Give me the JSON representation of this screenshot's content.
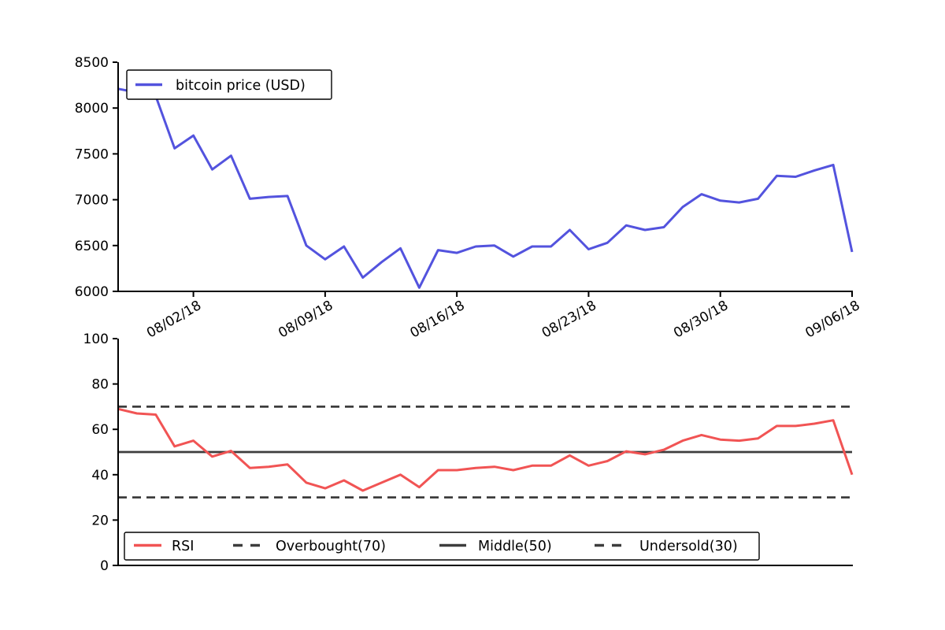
{
  "figure": {
    "background": "#ffffff",
    "text_color": "#000000",
    "axis_color": "#000000"
  },
  "chart_data": [
    {
      "id": "price",
      "type": "line",
      "x": [
        "07/29/18",
        "07/30/18",
        "07/31/18",
        "08/01/18",
        "08/02/18",
        "08/03/18",
        "08/04/18",
        "08/05/18",
        "08/06/18",
        "08/07/18",
        "08/08/18",
        "08/09/18",
        "08/10/18",
        "08/11/18",
        "08/12/18",
        "08/13/18",
        "08/14/18",
        "08/15/18",
        "08/16/18",
        "08/17/18",
        "08/18/18",
        "08/19/18",
        "08/20/18",
        "08/21/18",
        "08/22/18",
        "08/23/18",
        "08/24/18",
        "08/25/18",
        "08/26/18",
        "08/27/18",
        "08/28/18",
        "08/29/18",
        "08/30/18",
        "08/31/18",
        "09/01/18",
        "09/02/18",
        "09/03/18",
        "09/04/18",
        "09/05/18",
        "09/06/18"
      ],
      "series": [
        {
          "name": "bitcoin price (USD)",
          "color": "#5353DE",
          "style": "solid",
          "values": [
            8210,
            8170,
            8130,
            7560,
            7700,
            7330,
            7480,
            7010,
            7030,
            7040,
            6500,
            6350,
            6490,
            6150,
            6320,
            6470,
            6040,
            6450,
            6420,
            6490,
            6500,
            6380,
            6490,
            6490,
            6670,
            6460,
            6530,
            6720,
            6670,
            6700,
            6920,
            7060,
            6990,
            6970,
            7010,
            7260,
            7250,
            7320,
            7380,
            6430
          ]
        }
      ],
      "ylim": [
        6000,
        8500
      ],
      "yticks": [
        6000,
        6500,
        7000,
        7500,
        8000,
        8500
      ],
      "xtick_labels": [
        "08/02/18",
        "08/09/18",
        "08/16/18",
        "08/23/18",
        "08/30/18",
        "09/06/18"
      ],
      "xtick_indices": [
        4,
        11,
        18,
        25,
        32,
        39
      ],
      "xtick_rotation": 30,
      "grid": false,
      "legend": {
        "position": "upper-left",
        "entries": [
          {
            "label": "bitcoin price (USD)",
            "style": "solid",
            "color": "#5353DE"
          }
        ]
      }
    },
    {
      "id": "rsi",
      "type": "line",
      "x": [
        "07/29/18",
        "07/30/18",
        "07/31/18",
        "08/01/18",
        "08/02/18",
        "08/03/18",
        "08/04/18",
        "08/05/18",
        "08/06/18",
        "08/07/18",
        "08/08/18",
        "08/09/18",
        "08/10/18",
        "08/11/18",
        "08/12/18",
        "08/13/18",
        "08/14/18",
        "08/15/18",
        "08/16/18",
        "08/17/18",
        "08/18/18",
        "08/19/18",
        "08/20/18",
        "08/21/18",
        "08/22/18",
        "08/23/18",
        "08/24/18",
        "08/25/18",
        "08/26/18",
        "08/27/18",
        "08/28/18",
        "08/29/18",
        "08/30/18",
        "08/31/18",
        "09/01/18",
        "09/02/18",
        "09/03/18",
        "09/04/18",
        "09/05/18",
        "09/06/18"
      ],
      "series": [
        {
          "name": "RSI",
          "color": "#F15454",
          "style": "solid",
          "values": [
            69,
            67,
            66.5,
            52.5,
            55,
            48,
            50.5,
            43,
            43.5,
            44.5,
            36.5,
            34,
            37.5,
            33,
            36.5,
            40,
            34.5,
            42,
            42,
            43,
            43.5,
            42,
            44,
            44,
            48.5,
            44,
            46,
            50.3,
            49,
            51,
            55,
            57.5,
            55.5,
            55,
            56,
            61.5,
            61.5,
            62.5,
            64,
            40
          ]
        }
      ],
      "hlines": [
        {
          "label": "Overbought(70)",
          "value": 70,
          "style": "dashed",
          "color": "#3D3D3D"
        },
        {
          "label": "Middle(50)",
          "value": 50,
          "style": "solid",
          "color": "#3D3D3D"
        },
        {
          "label": "Undersold(30)",
          "value": 30,
          "style": "dashed",
          "color": "#3D3D3D"
        }
      ],
      "ylim": [
        0,
        100
      ],
      "yticks": [
        0,
        20,
        40,
        60,
        80,
        100
      ],
      "xtick_labels": [],
      "xtick_indices": [],
      "grid": false,
      "legend": {
        "position": "lower",
        "entries": [
          {
            "label": "RSI",
            "style": "solid",
            "color": "#F15454"
          },
          {
            "label": "Overbought(70)",
            "style": "dashed",
            "color": "#3D3D3D"
          },
          {
            "label": "Middle(50)",
            "style": "solid",
            "color": "#3D3D3D"
          },
          {
            "label": "Undersold(30)",
            "style": "dashed",
            "color": "#3D3D3D"
          }
        ]
      }
    }
  ]
}
